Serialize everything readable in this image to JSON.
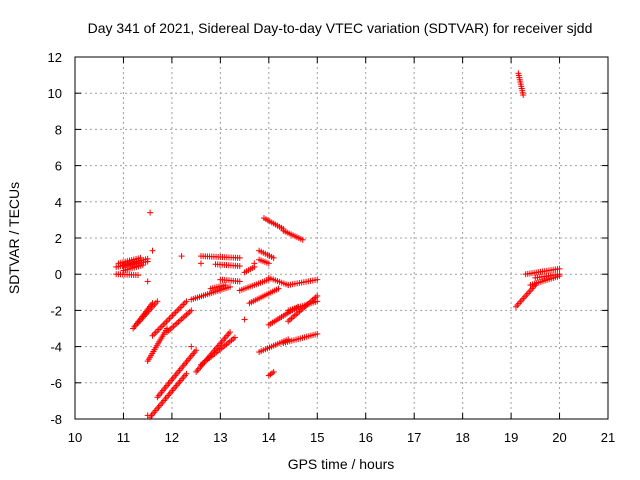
{
  "chart_data": {
    "type": "scatter",
    "title": "Day 341 of 2021, Sidereal Day-to-day VTEC variation (SDTVAR) for receiver sjdd",
    "xlabel": "GPS time / hours",
    "ylabel": "SDTVAR / TECUs",
    "xlim": [
      10,
      21
    ],
    "ylim": [
      -8,
      12
    ],
    "x_ticks": [
      "10",
      "11",
      "12",
      "13",
      "14",
      "15",
      "16",
      "17",
      "18",
      "19",
      "20",
      "21"
    ],
    "y_ticks": [
      "-8",
      "-6",
      "-4",
      "-2",
      "0",
      "2",
      "4",
      "6",
      "8",
      "10",
      "12"
    ],
    "grid": true,
    "marker": "+",
    "series_color": "#ff0000",
    "segments": [
      {
        "name": "arc-01",
        "x0": 10.85,
        "y0": 0.4,
        "x1": 11.5,
        "y1": 0.7
      },
      {
        "name": "arc-02",
        "x0": 10.85,
        "y0": 0.0,
        "x1": 11.3,
        "y1": -0.05
      },
      {
        "name": "arc-03",
        "x0": 10.9,
        "y0": 0.6,
        "x1": 11.35,
        "y1": 0.9
      },
      {
        "name": "arc-04",
        "x0": 11.0,
        "y0": 0.2,
        "x1": 11.4,
        "y1": 0.5
      },
      {
        "name": "arc-05",
        "x0": 11.2,
        "y0": -3.0,
        "x1": 11.6,
        "y1": -1.6
      },
      {
        "name": "arc-06",
        "x0": 11.3,
        "y0": -2.7,
        "x1": 11.7,
        "y1": -1.5
      },
      {
        "name": "arc-07",
        "x0": 11.55,
        "y0": -7.9,
        "x1": 12.3,
        "y1": -5.5
      },
      {
        "name": "arc-08",
        "x0": 11.7,
        "y0": -6.8,
        "x1": 12.5,
        "y1": -4.2
      },
      {
        "name": "arc-09",
        "x0": 11.5,
        "y0": -4.8,
        "x1": 11.9,
        "y1": -3.0
      },
      {
        "name": "arc-10",
        "x0": 11.6,
        "y0": -3.4,
        "x1": 12.3,
        "y1": -1.5
      },
      {
        "name": "arc-11",
        "x0": 11.9,
        "y0": -3.2,
        "x1": 12.4,
        "y1": -2.0
      },
      {
        "name": "arc-12",
        "x0": 12.5,
        "y0": -5.4,
        "x1": 13.2,
        "y1": -3.2
      },
      {
        "name": "arc-13",
        "x0": 12.6,
        "y0": -5.0,
        "x1": 13.3,
        "y1": -3.5
      },
      {
        "name": "arc-14",
        "x0": 12.4,
        "y0": -1.4,
        "x1": 13.2,
        "y1": -0.7
      },
      {
        "name": "arc-15",
        "x0": 12.6,
        "y0": 1.0,
        "x1": 13.4,
        "y1": 0.9
      },
      {
        "name": "arc-16",
        "x0": 12.9,
        "y0": 0.55,
        "x1": 13.4,
        "y1": 0.45
      },
      {
        "name": "arc-17",
        "x0": 12.8,
        "y0": -0.8,
        "x1": 13.1,
        "y1": -0.6
      },
      {
        "name": "arc-18",
        "x0": 13.0,
        "y0": -0.3,
        "x1": 13.4,
        "y1": -0.4
      },
      {
        "name": "arc-19",
        "x0": 13.4,
        "y0": -0.9,
        "x1": 14.0,
        "y1": -0.3
      },
      {
        "name": "arc-20",
        "x0": 13.6,
        "y0": -1.6,
        "x1": 14.2,
        "y1": -0.8
      },
      {
        "name": "arc-21",
        "x0": 13.8,
        "y0": -4.3,
        "x1": 14.4,
        "y1": -3.6
      },
      {
        "name": "arc-22",
        "x0": 14.0,
        "y0": -2.8,
        "x1": 14.6,
        "y1": -1.8
      },
      {
        "name": "arc-23",
        "x0": 14.0,
        "y0": -5.6,
        "x1": 14.1,
        "y1": -5.4
      },
      {
        "name": "arc-24",
        "x0": 13.9,
        "y0": 3.1,
        "x1": 14.3,
        "y1": 2.5
      },
      {
        "name": "arc-25",
        "x0": 14.3,
        "y0": 2.4,
        "x1": 14.7,
        "y1": 1.9
      },
      {
        "name": "arc-26",
        "x0": 13.8,
        "y0": 1.3,
        "x1": 14.1,
        "y1": 0.9
      },
      {
        "name": "arc-27",
        "x0": 14.0,
        "y0": -0.2,
        "x1": 14.4,
        "y1": -0.6
      },
      {
        "name": "arc-28",
        "x0": 14.4,
        "y0": -0.6,
        "x1": 15.0,
        "y1": -0.3
      },
      {
        "name": "arc-29",
        "x0": 14.3,
        "y0": -3.8,
        "x1": 15.0,
        "y1": -3.3
      },
      {
        "name": "arc-30",
        "x0": 14.4,
        "y0": -2.6,
        "x1": 15.0,
        "y1": -1.2
      },
      {
        "name": "arc-31",
        "x0": 14.4,
        "y0": -2.0,
        "x1": 15.0,
        "y1": -1.5
      },
      {
        "name": "arc-32",
        "x0": 13.5,
        "y0": 0.1,
        "x1": 13.7,
        "y1": 0.4
      },
      {
        "name": "arc-33",
        "x0": 13.8,
        "y0": 0.8,
        "x1": 14.0,
        "y1": 0.6
      },
      {
        "name": "arc-34",
        "x0": 11.0,
        "y0": 0.5,
        "x1": 11.5,
        "y1": 0.85
      },
      {
        "name": "arc-35",
        "x0": 19.1,
        "y0": -1.8,
        "x1": 19.5,
        "y1": -0.6
      },
      {
        "name": "arc-36",
        "x0": 19.4,
        "y0": -0.6,
        "x1": 20.0,
        "y1": -0.1
      },
      {
        "name": "arc-37",
        "x0": 19.3,
        "y0": 0.0,
        "x1": 20.0,
        "y1": 0.3
      },
      {
        "name": "arc-38",
        "x0": 19.5,
        "y0": -0.2,
        "x1": 20.0,
        "y1": 0.0
      },
      {
        "name": "arc-39",
        "x0": 19.15,
        "y0": 11.1,
        "x1": 19.25,
        "y1": 9.9
      }
    ],
    "points": [
      {
        "x": 11.55,
        "y": 3.4
      },
      {
        "x": 11.6,
        "y": 1.3
      },
      {
        "x": 12.2,
        "y": 1.0
      },
      {
        "x": 12.4,
        "y": -4.0
      },
      {
        "x": 13.5,
        "y": -2.5
      },
      {
        "x": 11.5,
        "y": -0.4
      },
      {
        "x": 12.6,
        "y": 0.6
      },
      {
        "x": 13.7,
        "y": 0.6
      },
      {
        "x": 11.5,
        "y": -7.8
      }
    ]
  }
}
